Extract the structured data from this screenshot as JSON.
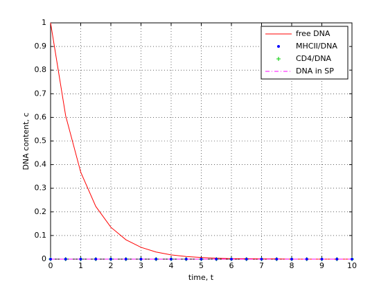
{
  "chart_data": {
    "type": "line",
    "xlabel": "time, t",
    "ylabel": "DNA content, c",
    "x": [
      0,
      0.5,
      1,
      1.5,
      2,
      2.5,
      3,
      3.5,
      4,
      4.5,
      5,
      5.5,
      6,
      6.5,
      7,
      7.5,
      8,
      8.5,
      9,
      9.5,
      10
    ],
    "series": [
      {
        "name": "free DNA",
        "color": "#ff0000",
        "linestyle": "solid",
        "marker": "none",
        "values": [
          1,
          0.607,
          0.368,
          0.223,
          0.135,
          0.082,
          0.05,
          0.03,
          0.018,
          0.011,
          0.007,
          0.004,
          0.002,
          0.002,
          0.001,
          0.001,
          0,
          0,
          0,
          0,
          0
        ]
      },
      {
        "name": "MHCII/DNA",
        "color": "#0000ff",
        "linestyle": "none",
        "marker": "dot",
        "values": [
          0,
          0,
          0,
          0,
          0,
          0,
          0,
          0,
          0,
          0,
          0,
          0,
          0,
          0,
          0,
          0,
          0,
          0,
          0,
          0,
          0
        ]
      },
      {
        "name": "CD4/DNA",
        "color": "#00cc00",
        "linestyle": "none",
        "marker": "plus",
        "values": [
          0,
          0,
          0,
          0,
          0,
          0,
          0,
          0,
          0,
          0,
          0,
          0,
          0,
          0,
          0,
          0,
          0,
          0,
          0,
          0,
          0
        ]
      },
      {
        "name": "DNA in SP",
        "color": "#ff00ff",
        "linestyle": "dashdot",
        "marker": "none",
        "values": [
          0,
          0,
          0,
          0,
          0,
          0,
          0,
          0,
          0,
          0,
          0,
          0,
          0,
          0,
          0,
          0,
          0,
          0,
          0,
          0,
          0
        ]
      }
    ],
    "xlim": [
      0,
      10
    ],
    "xticks": [
      0,
      1,
      2,
      3,
      4,
      5,
      6,
      7,
      8,
      9,
      10
    ],
    "ylim": [
      0,
      1
    ],
    "yticks": [
      0,
      0.1,
      0.2,
      0.3,
      0.4,
      0.5,
      0.6,
      0.7,
      0.8,
      0.9,
      1
    ],
    "grid": true,
    "legend": "top-right"
  }
}
